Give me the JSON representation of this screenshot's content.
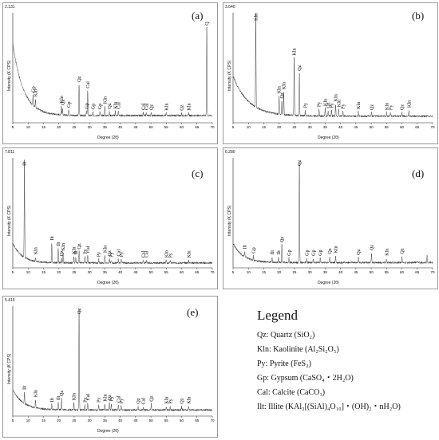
{
  "figure": {
    "axis": {
      "y_label": "Intensity    (K CPS)",
      "x_label": "Degree (2θ)",
      "x_ticks": [
        "5",
        "10",
        "15",
        "20",
        "25",
        "30",
        "35",
        "40",
        "45",
        "50",
        "55",
        "60",
        "65",
        "70"
      ]
    },
    "legend": {
      "title": "Legend",
      "items": [
        "Qz: Quartz (SiO₂)",
        "Kln: Kaolinite (Al₂Si₂O₅)",
        "Py: Pyrite (FeS₂)",
        "Gp: Gypsum (CaSO₄・2H₂O)",
        "Cal: Calcite (CaCO₃)",
        "Ilt: Illite (KAl₂[(SiAl)₄O₁₀]・(OH)₂・nH₂O)"
      ]
    }
  },
  "chart_data": [
    {
      "type": "line",
      "label": "(a)",
      "ymax_label": "2.131",
      "xlim": [
        5,
        70
      ],
      "ylim": [
        0,
        2.131
      ],
      "background": {
        "start": 1.55,
        "decay": 3.4,
        "floor": 0.14
      },
      "peaks": [
        {
          "x": 12.4,
          "h": 0.16,
          "label": "Kln"
        },
        {
          "x": 11.6,
          "h": 0.2,
          "label": "Gp"
        },
        {
          "x": 20.8,
          "h": 0.18,
          "label": "Kln"
        },
        {
          "x": 21.2,
          "h": 0.14,
          "label": "Qz"
        },
        {
          "x": 23.2,
          "h": 0.1,
          "label": "Gp"
        },
        {
          "x": 26.6,
          "h": 0.6,
          "label": "Qz"
        },
        {
          "x": 29.4,
          "h": 0.48,
          "label": "Cal"
        },
        {
          "x": 29.0,
          "h": 0.08,
          "label": "Gp"
        },
        {
          "x": 31.1,
          "h": 0.07,
          "label": "Gp"
        },
        {
          "x": 33.4,
          "h": 0.07,
          "label": "Gp"
        },
        {
          "x": 35.0,
          "h": 0.18,
          "label": "Kln"
        },
        {
          "x": 36.5,
          "h": 0.08,
          "label": "Qz"
        },
        {
          "x": 38.4,
          "h": 0.08,
          "label": "Kln"
        },
        {
          "x": 39.4,
          "h": 0.08,
          "label": "Cal"
        },
        {
          "x": 47.5,
          "h": 0.06,
          "label": "Cal"
        },
        {
          "x": 48.5,
          "h": 0.06,
          "label": "Cal"
        },
        {
          "x": 50.1,
          "h": 0.06,
          "label": "Qz"
        },
        {
          "x": 55.0,
          "h": 0.05,
          "label": "Kln"
        },
        {
          "x": 60.0,
          "h": 0.05,
          "label": "Qz"
        },
        {
          "x": 62.3,
          "h": 0.05,
          "label": "Kln"
        },
        {
          "x": 68.2,
          "h": 1.7,
          "label": "Q"
        }
      ]
    },
    {
      "type": "line",
      "label": "(b)",
      "ymax_label": "3.640",
      "xlim": [
        5,
        70
      ],
      "ylim": [
        0,
        3.64
      ],
      "background": {
        "start": 1.55,
        "decay": 5.0,
        "floor": 0.22
      },
      "peaks": [
        {
          "x": 12.4,
          "h": 3.1,
          "label": "Kln"
        },
        {
          "x": 20.0,
          "h": 0.6,
          "label": "Kln"
        },
        {
          "x": 20.9,
          "h": 0.45,
          "label": "Qz"
        },
        {
          "x": 21.5,
          "h": 0.75,
          "label": "Kln"
        },
        {
          "x": 24.9,
          "h": 1.9,
          "label": "Kln"
        },
        {
          "x": 26.6,
          "h": 1.4,
          "label": "Qz"
        },
        {
          "x": 28.5,
          "h": 0.18,
          "label": "Py"
        },
        {
          "x": 33.0,
          "h": 0.22,
          "label": "Py"
        },
        {
          "x": 35.0,
          "h": 0.25,
          "label": "Kln"
        },
        {
          "x": 36.0,
          "h": 0.18,
          "label": "Qz"
        },
        {
          "x": 37.1,
          "h": 0.18,
          "label": "Py"
        },
        {
          "x": 38.4,
          "h": 0.4,
          "label": "Kln"
        },
        {
          "x": 39.4,
          "h": 0.22,
          "label": "Kln"
        },
        {
          "x": 40.8,
          "h": 0.15,
          "label": "Py"
        },
        {
          "x": 45.8,
          "h": 0.15,
          "label": "Kln"
        },
        {
          "x": 50.1,
          "h": 0.12,
          "label": "Qz"
        },
        {
          "x": 55.0,
          "h": 0.12,
          "label": "Kln"
        },
        {
          "x": 56.3,
          "h": 0.12,
          "label": "Py"
        },
        {
          "x": 60.0,
          "h": 0.12,
          "label": "Qz"
        },
        {
          "x": 62.3,
          "h": 0.2,
          "label": "Kln"
        }
      ]
    },
    {
      "type": "line",
      "label": "(c)",
      "ymax_label": "7.811",
      "xlim": [
        5,
        70
      ],
      "ylim": [
        0,
        7.811
      ],
      "background": {
        "start": 1.75,
        "decay": 3.0,
        "floor": 0.35
      },
      "peaks": [
        {
          "x": 8.8,
          "h": 6.9,
          "label": "Ilt"
        },
        {
          "x": 12.4,
          "h": 0.3,
          "label": "Kln"
        },
        {
          "x": 17.7,
          "h": 1.4,
          "label": "Ilt"
        },
        {
          "x": 19.8,
          "h": 1.0,
          "label": "Ilt"
        },
        {
          "x": 20.9,
          "h": 0.3,
          "label": "Qz"
        },
        {
          "x": 21.4,
          "h": 0.7,
          "label": "Kln"
        },
        {
          "x": 24.9,
          "h": 0.45,
          "label": "Kln"
        },
        {
          "x": 25.5,
          "h": 0.4,
          "label": "Ilt"
        },
        {
          "x": 26.6,
          "h": 0.8,
          "label": "Qz"
        },
        {
          "x": 28.5,
          "h": 0.45,
          "label": "Py"
        },
        {
          "x": 29.4,
          "h": 0.55,
          "label": "Cal"
        },
        {
          "x": 33.0,
          "h": 0.25,
          "label": "Py"
        },
        {
          "x": 35.0,
          "h": 0.55,
          "label": "Kln"
        },
        {
          "x": 36.5,
          "h": 0.3,
          "label": "Qz"
        },
        {
          "x": 37.1,
          "h": 0.22,
          "label": "Py"
        },
        {
          "x": 39.4,
          "h": 0.3,
          "label": "Cal"
        },
        {
          "x": 40.3,
          "h": 0.25,
          "label": "Py"
        },
        {
          "x": 47.5,
          "h": 0.2,
          "label": "Cal"
        },
        {
          "x": 48.5,
          "h": 0.2,
          "label": "Cal"
        },
        {
          "x": 55.0,
          "h": 0.2,
          "label": "Kln"
        },
        {
          "x": 56.3,
          "h": 0.18,
          "label": "Py"
        },
        {
          "x": 62.3,
          "h": 0.18,
          "label": "Kln"
        }
      ]
    },
    {
      "type": "line",
      "label": "(d)",
      "ymax_label": "6.280",
      "xlim": [
        5,
        70
      ],
      "ylim": [
        0,
        6.28
      ],
      "background": {
        "start": 1.4,
        "decay": 3.2,
        "floor": 0.3
      },
      "peaks": [
        {
          "x": 8.8,
          "h": 0.3,
          "label": "Ilt"
        },
        {
          "x": 11.6,
          "h": 0.25,
          "label": "Gp"
        },
        {
          "x": 17.7,
          "h": 0.3,
          "label": "Ilt"
        },
        {
          "x": 19.8,
          "h": 0.3,
          "label": "Ilt"
        },
        {
          "x": 20.9,
          "h": 1.0,
          "label": "Qz"
        },
        {
          "x": 23.2,
          "h": 0.25,
          "label": "Gp"
        },
        {
          "x": 26.6,
          "h": 5.7,
          "label": "Qz"
        },
        {
          "x": 29.0,
          "h": 0.25,
          "label": "Gp"
        },
        {
          "x": 31.1,
          "h": 0.25,
          "label": "Gp"
        },
        {
          "x": 33.4,
          "h": 0.25,
          "label": "Gp"
        },
        {
          "x": 36.5,
          "h": 0.35,
          "label": "Qz"
        },
        {
          "x": 38.4,
          "h": 0.4,
          "label": "Kln"
        },
        {
          "x": 45.8,
          "h": 0.3,
          "label": "Qz"
        },
        {
          "x": 50.1,
          "h": 0.55,
          "label": "Qz"
        },
        {
          "x": 55.0,
          "h": 0.25,
          "label": "Kln"
        },
        {
          "x": 60.0,
          "h": 0.35,
          "label": "Qz"
        },
        {
          "x": 68.2,
          "h": 0.4,
          "label": ""
        }
      ]
    },
    {
      "type": "line",
      "label": "(e)",
      "ymax_label": "5.415",
      "xlim": [
        5,
        70
      ],
      "ylim": [
        0,
        5.415
      ],
      "background": {
        "start": 1.3,
        "decay": 3.4,
        "floor": 0.3
      },
      "peaks": [
        {
          "x": 8.8,
          "h": 0.55,
          "label": "Ilt"
        },
        {
          "x": 12.4,
          "h": 0.4,
          "label": "Kln"
        },
        {
          "x": 17.7,
          "h": 0.25,
          "label": "Ilt"
        },
        {
          "x": 19.8,
          "h": 0.35,
          "label": "Ilt"
        },
        {
          "x": 20.9,
          "h": 0.55,
          "label": "Qz"
        },
        {
          "x": 24.9,
          "h": 0.35,
          "label": "Kln"
        },
        {
          "x": 26.6,
          "h": 4.9,
          "label": "Qz"
        },
        {
          "x": 28.5,
          "h": 0.25,
          "label": "Py"
        },
        {
          "x": 29.4,
          "h": 0.35,
          "label": "Cal"
        },
        {
          "x": 33.0,
          "h": 0.25,
          "label": "Py"
        },
        {
          "x": 35.0,
          "h": 0.3,
          "label": "Kln"
        },
        {
          "x": 36.5,
          "h": 0.35,
          "label": "Qz"
        },
        {
          "x": 37.1,
          "h": 0.3,
          "label": "Py"
        },
        {
          "x": 39.4,
          "h": 0.25,
          "label": "Cal"
        },
        {
          "x": 40.3,
          "h": 0.2,
          "label": "Py"
        },
        {
          "x": 45.8,
          "h": 0.18,
          "label": "Qz"
        },
        {
          "x": 47.5,
          "h": 0.15,
          "label": "Cal"
        },
        {
          "x": 50.1,
          "h": 0.3,
          "label": "Qz"
        },
        {
          "x": 55.0,
          "h": 0.18,
          "label": "Kln"
        },
        {
          "x": 56.3,
          "h": 0.18,
          "label": "Py"
        },
        {
          "x": 60.0,
          "h": 0.18,
          "label": "Qz"
        },
        {
          "x": 62.3,
          "h": 0.18,
          "label": "Kln"
        }
      ]
    }
  ]
}
